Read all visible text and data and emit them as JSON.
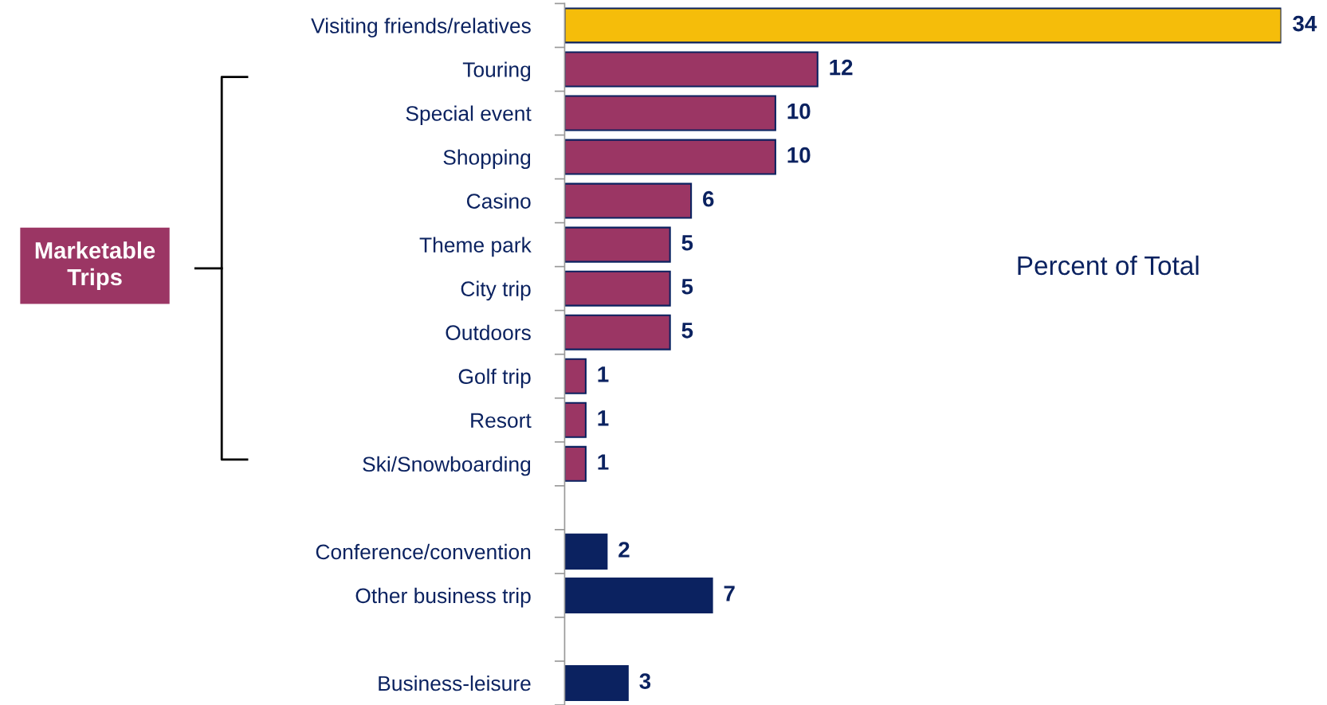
{
  "chart_data": {
    "type": "bar",
    "orientation": "horizontal",
    "data_labels": true,
    "categories": [
      "Visiting friends/relatives",
      "Touring",
      "Special event",
      "Shopping",
      "Casino",
      "Theme park",
      "City trip",
      "Outdoors",
      "Golf trip",
      "Resort",
      "Ski/Snowboarding",
      null,
      "Conference/convention",
      "Other business trip",
      null,
      "Business-leisure"
    ],
    "values": [
      34,
      12,
      10,
      10,
      6,
      5,
      5,
      5,
      1,
      1,
      1,
      null,
      2,
      7,
      null,
      3
    ],
    "colors": [
      "#f5bd0a",
      "#9b3664",
      "#9b3664",
      "#9b3664",
      "#9b3664",
      "#9b3664",
      "#9b3664",
      "#9b3664",
      "#9b3664",
      "#9b3664",
      "#9b3664",
      null,
      "#0b2260",
      "#0b2260",
      null,
      "#0b2260"
    ],
    "annotations": [
      "Percent of Total",
      "Marketable\nTrips"
    ],
    "grid": false,
    "legend": false
  }
}
